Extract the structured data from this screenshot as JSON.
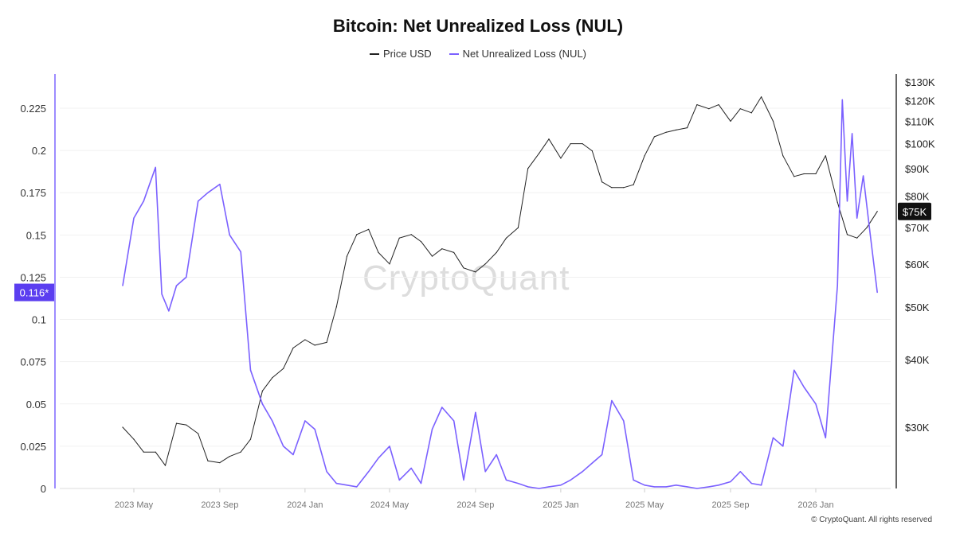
{
  "chart_data": {
    "type": "line",
    "title": "Bitcoin: Net Unrealized Loss (NUL)",
    "legend_position": "top",
    "grid": true,
    "watermark": "CryptoQuant",
    "credit": "© CryptoQuant. All rights reserved",
    "x_ticks": [
      "2023 May",
      "2023 Sep",
      "2024 Jan",
      "2024 May",
      "2024 Sep",
      "2025 Jan",
      "2025 May",
      "2025 Sep",
      "2026 Jan"
    ],
    "x_tick_dates": [
      "2023-05-01",
      "2023-09-01",
      "2024-01-01",
      "2024-05-01",
      "2024-09-01",
      "2025-01-01",
      "2025-05-01",
      "2025-09-01",
      "2026-01-01"
    ],
    "y_left": {
      "ticks": [
        "0",
        "0.025",
        "0.05",
        "0.075",
        "0.1",
        "0.125",
        "0.15",
        "0.175",
        "0.2",
        "0.225"
      ],
      "range": [
        0,
        0.245
      ],
      "current_label": "0.116*",
      "color": "#7b61ff"
    },
    "y_right": {
      "scale": "log",
      "ticks": [
        "$30K",
        "$40K",
        "$50K",
        "$60K",
        "$70K",
        "$80K",
        "$90K",
        "$100K",
        "$110K",
        "$120K",
        "$130K"
      ],
      "tick_values": [
        30000,
        40000,
        50000,
        60000,
        70000,
        80000,
        90000,
        100000,
        110000,
        120000,
        130000
      ],
      "current_label": "$75K"
    },
    "series": [
      {
        "name": "Price USD",
        "color": "#222222",
        "axis": "right",
        "dates": [
          "2023-04-15",
          "2023-05-01",
          "2023-05-15",
          "2023-06-01",
          "2023-06-15",
          "2023-07-01",
          "2023-07-15",
          "2023-08-01",
          "2023-08-15",
          "2023-09-01",
          "2023-09-15",
          "2023-10-01",
          "2023-10-15",
          "2023-11-01",
          "2023-11-15",
          "2023-12-01",
          "2023-12-15",
          "2024-01-01",
          "2024-01-15",
          "2024-02-01",
          "2024-02-15",
          "2024-03-01",
          "2024-03-15",
          "2024-04-01",
          "2024-04-15",
          "2024-05-01",
          "2024-05-15",
          "2024-06-01",
          "2024-06-15",
          "2024-07-01",
          "2024-07-15",
          "2024-08-01",
          "2024-08-15",
          "2024-09-01",
          "2024-09-15",
          "2024-10-01",
          "2024-10-15",
          "2024-11-01",
          "2024-11-15",
          "2024-12-01",
          "2024-12-15",
          "2025-01-01",
          "2025-01-15",
          "2025-02-01",
          "2025-02-15",
          "2025-03-01",
          "2025-03-15",
          "2025-04-01",
          "2025-04-15",
          "2025-05-01",
          "2025-05-15",
          "2025-06-01",
          "2025-06-15",
          "2025-07-01",
          "2025-07-15",
          "2025-08-01",
          "2025-08-15",
          "2025-09-01",
          "2025-09-15",
          "2025-10-01",
          "2025-10-15",
          "2025-11-01",
          "2025-11-15",
          "2025-12-01",
          "2025-12-15",
          "2026-01-01",
          "2026-01-15",
          "2026-02-01",
          "2026-02-15",
          "2026-03-01",
          "2026-03-15",
          "2026-03-30"
        ],
        "values": [
          30000,
          28500,
          27000,
          27000,
          25500,
          30500,
          30300,
          29200,
          26000,
          25800,
          26500,
          27000,
          28500,
          35000,
          37000,
          38500,
          42000,
          43500,
          42500,
          43000,
          50000,
          62000,
          68000,
          69500,
          63000,
          60000,
          67000,
          68000,
          66000,
          62000,
          64000,
          63000,
          59000,
          58000,
          60000,
          63000,
          67000,
          70000,
          90000,
          96000,
          102000,
          94000,
          100000,
          100000,
          97000,
          85000,
          83000,
          83000,
          84000,
          95000,
          103000,
          105000,
          106000,
          107000,
          118000,
          116000,
          118000,
          110000,
          116000,
          114000,
          122000,
          110000,
          95000,
          87000,
          88000,
          88000,
          95000,
          78000,
          68000,
          67000,
          70000,
          75000
        ]
      },
      {
        "name": "Net Unrealized Loss (NUL)",
        "color": "#7b61ff",
        "axis": "left",
        "dates": [
          "2023-04-15",
          "2023-05-01",
          "2023-05-15",
          "2023-06-01",
          "2023-06-10",
          "2023-06-20",
          "2023-07-01",
          "2023-07-15",
          "2023-08-01",
          "2023-08-15",
          "2023-09-01",
          "2023-09-15",
          "2023-10-01",
          "2023-10-15",
          "2023-11-01",
          "2023-11-15",
          "2023-12-01",
          "2023-12-15",
          "2024-01-01",
          "2024-01-15",
          "2024-02-01",
          "2024-02-15",
          "2024-03-01",
          "2024-03-15",
          "2024-04-01",
          "2024-04-15",
          "2024-05-01",
          "2024-05-15",
          "2024-06-01",
          "2024-06-15",
          "2024-07-01",
          "2024-07-15",
          "2024-08-01",
          "2024-08-15",
          "2024-09-01",
          "2024-09-15",
          "2024-10-01",
          "2024-10-15",
          "2024-11-01",
          "2024-11-15",
          "2024-12-01",
          "2024-12-15",
          "2025-01-01",
          "2025-01-15",
          "2025-02-01",
          "2025-02-15",
          "2025-03-01",
          "2025-03-15",
          "2025-04-01",
          "2025-04-15",
          "2025-05-01",
          "2025-05-15",
          "2025-06-01",
          "2025-06-15",
          "2025-07-01",
          "2025-07-15",
          "2025-08-01",
          "2025-08-15",
          "2025-09-01",
          "2025-09-15",
          "2025-10-01",
          "2025-10-15",
          "2025-11-01",
          "2025-11-15",
          "2025-12-01",
          "2025-12-15",
          "2026-01-01",
          "2026-01-15",
          "2026-02-01",
          "2026-02-08",
          "2026-02-15",
          "2026-02-22",
          "2026-03-01",
          "2026-03-10",
          "2026-03-20",
          "2026-03-30"
        ],
        "values": [
          0.12,
          0.16,
          0.17,
          0.19,
          0.115,
          0.105,
          0.12,
          0.125,
          0.17,
          0.175,
          0.18,
          0.15,
          0.14,
          0.07,
          0.05,
          0.04,
          0.025,
          0.02,
          0.04,
          0.035,
          0.01,
          0.003,
          0.002,
          0.001,
          0.01,
          0.018,
          0.025,
          0.005,
          0.012,
          0.003,
          0.035,
          0.048,
          0.04,
          0.005,
          0.045,
          0.01,
          0.02,
          0.005,
          0.003,
          0.001,
          0.0,
          0.001,
          0.002,
          0.005,
          0.01,
          0.015,
          0.02,
          0.052,
          0.04,
          0.005,
          0.002,
          0.001,
          0.001,
          0.002,
          0.001,
          0.0,
          0.001,
          0.002,
          0.004,
          0.01,
          0.003,
          0.002,
          0.03,
          0.025,
          0.07,
          0.06,
          0.05,
          0.03,
          0.12,
          0.23,
          0.17,
          0.21,
          0.16,
          0.185,
          0.15,
          0.116
        ]
      }
    ]
  }
}
